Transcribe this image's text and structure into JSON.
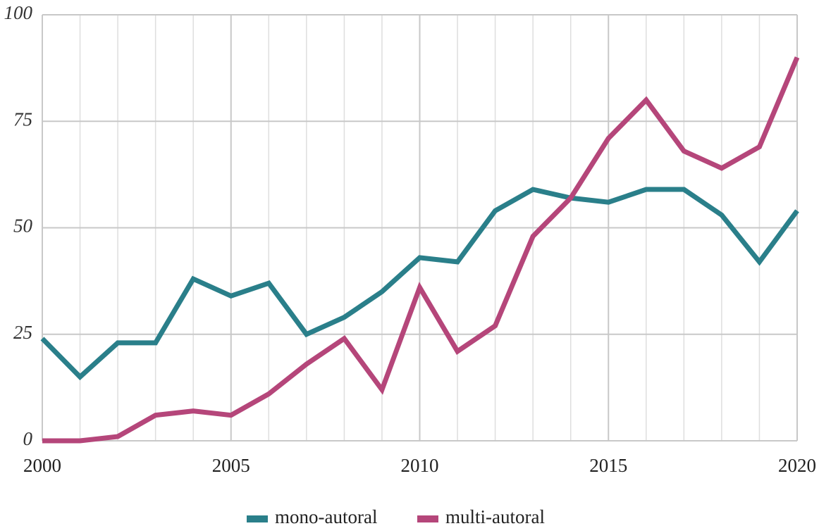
{
  "chart_data": {
    "type": "line",
    "x": [
      2000,
      2001,
      2002,
      2003,
      2004,
      2005,
      2006,
      2007,
      2008,
      2009,
      2010,
      2011,
      2012,
      2013,
      2014,
      2015,
      2016,
      2017,
      2018,
      2019,
      2020
    ],
    "series": [
      {
        "name": "mono-autoral",
        "color": "#2a7f8a",
        "values": [
          24,
          15,
          23,
          23,
          38,
          34,
          37,
          25,
          29,
          35,
          43,
          42,
          54,
          59,
          57,
          56,
          59,
          59,
          53,
          42,
          54
        ]
      },
      {
        "name": "multi-autoral",
        "color": "#b5467a",
        "values": [
          0,
          0,
          1,
          6,
          7,
          6,
          11,
          18,
          24,
          12,
          36,
          21,
          27,
          48,
          57,
          71,
          80,
          68,
          64,
          69,
          90
        ]
      }
    ],
    "xlim": [
      2000,
      2020
    ],
    "xticks": [
      2000,
      2005,
      2010,
      2015,
      2020
    ],
    "ylim": [
      0,
      100
    ],
    "yticks": [
      0,
      25,
      50,
      75,
      100
    ],
    "grid": true,
    "legend": "bottom"
  }
}
